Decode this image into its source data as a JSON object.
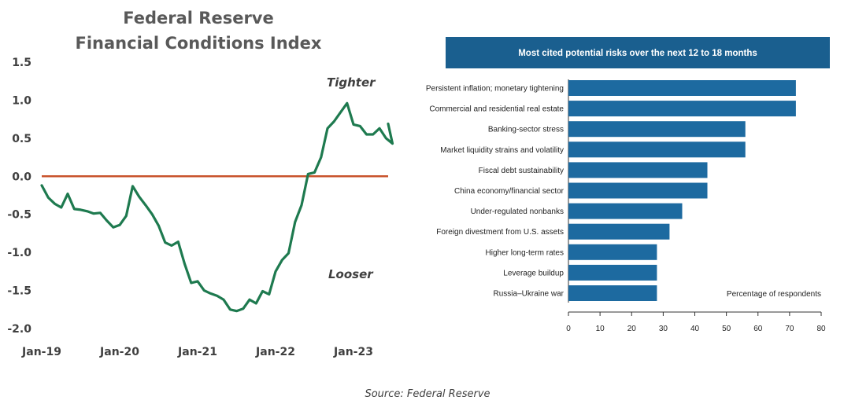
{
  "chart_data": [
    {
      "type": "line",
      "title": "Federal Reserve",
      "subtitle": "Financial Conditions  Index",
      "xlabel": "",
      "ylabel": "",
      "ylim": [
        -2.0,
        1.5
      ],
      "yticks": [
        "1.5",
        "1.0",
        "0.5",
        "0.0",
        "-0.5",
        "-1.0",
        "-1.5",
        "-2.0"
      ],
      "xticks": [
        "Jan-19",
        "Jan-20",
        "Jan-21",
        "Jan-22",
        "Jan-23"
      ],
      "grid": false,
      "annotations": {
        "upper": "Tighter",
        "lower": "Looser"
      },
      "colors": {
        "series": "#1e7a4f",
        "zero_line": "#c8532c"
      },
      "series": [
        {
          "x": [
            "2019-01",
            "2019-02",
            "2019-03",
            "2019-04",
            "2019-05",
            "2019-06",
            "2019-07",
            "2019-08",
            "2019-09",
            "2019-10",
            "2019-11",
            "2019-12",
            "2020-01",
            "2020-02",
            "2020-03",
            "2020-04",
            "2020-05",
            "2020-06",
            "2020-07",
            "2020-08",
            "2020-09",
            "2020-10",
            "2020-11",
            "2020-12",
            "2021-01",
            "2021-02",
            "2021-03",
            "2021-04",
            "2021-05",
            "2021-06",
            "2021-07",
            "2021-08",
            "2021-09",
            "2021-10",
            "2021-11",
            "2021-12",
            "2022-01",
            "2022-02",
            "2022-03",
            "2022-04",
            "2022-05",
            "2022-06",
            "2022-07",
            "2022-08",
            "2022-09",
            "2022-10",
            "2022-11",
            "2022-12",
            "2023-01",
            "2023-02",
            "2023-03",
            "2023-04",
            "2023-05",
            "2023-06",
            "2023-07"
          ],
          "values": [
            -0.12,
            -0.28,
            -0.36,
            -0.41,
            -0.23,
            -0.43,
            -0.44,
            -0.46,
            -0.49,
            -0.48,
            -0.58,
            -0.67,
            -0.64,
            -0.52,
            -0.13,
            -0.27,
            -0.38,
            -0.5,
            -0.65,
            -0.87,
            -0.91,
            -0.86,
            -1.15,
            -1.4,
            -1.38,
            -1.5,
            -1.54,
            -1.57,
            -1.62,
            -1.75,
            -1.77,
            -1.74,
            -1.62,
            -1.67,
            -1.51,
            -1.55,
            -1.25,
            -1.1,
            -1.01,
            -0.6,
            -0.38,
            0.03,
            0.05,
            0.25,
            0.63,
            0.72,
            0.84,
            0.96,
            0.68,
            0.66,
            0.55,
            0.55,
            0.63,
            0.5,
            0.43
          ]
        }
      ]
    },
    {
      "type": "bar",
      "orientation": "horizontal",
      "title": "Most cited potential risks over the next 12 to 18 months",
      "xlabel": "Percentage of respondents",
      "xlim": [
        0,
        80
      ],
      "xticks": [
        "0",
        "10",
        "20",
        "30",
        "40",
        "50",
        "60",
        "70",
        "80"
      ],
      "colors": {
        "bars": "#1d6aa0",
        "banner": "#1a5f8f"
      },
      "categories": [
        "Persistent inflation; monetary tightening",
        "Commercial and residential real estate",
        "Banking-sector stress",
        "Market liquidity strains and volatility",
        "Fiscal debt sustainability",
        "China economy/financial sector",
        "Under-regulated nonbanks",
        "Foreign divestment from U.S. assets",
        "Higher long-term rates",
        "Leverage buildup",
        "Russia–Ukraine war"
      ],
      "values": [
        72,
        72,
        56,
        56,
        44,
        44,
        36,
        32,
        28,
        28,
        28
      ]
    }
  ],
  "source": "Source: Federal Reserve"
}
